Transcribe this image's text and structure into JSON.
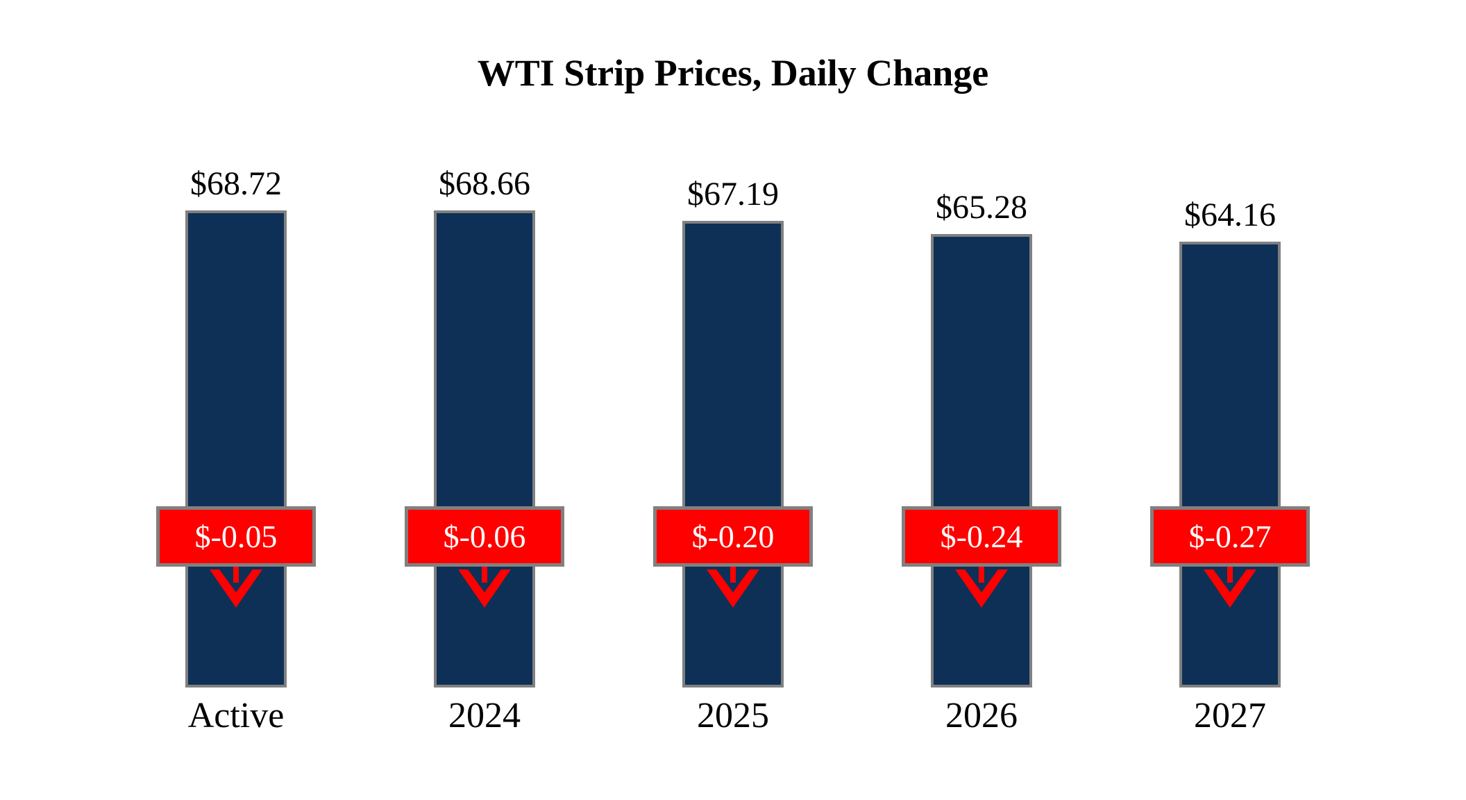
{
  "title": "WTI Strip Prices, Daily Change",
  "colors": {
    "bar_fill": "#0E3056",
    "border_gray": "#808080",
    "change_red": "#FF0000",
    "change_text": "#FFFFFF",
    "label_text": "#000000",
    "background": "#FFFFFF"
  },
  "chart_data": {
    "type": "bar",
    "title": "WTI Strip Prices, Daily Change",
    "categories": [
      "Active",
      "2024",
      "2025",
      "2026",
      "2027"
    ],
    "series": [
      {
        "name": "strip_price_usd",
        "values": [
          68.72,
          68.66,
          67.19,
          65.28,
          64.16
        ],
        "labels": [
          "$68.72",
          "$68.66",
          "$67.19",
          "$65.28",
          "$64.16"
        ]
      },
      {
        "name": "daily_change_usd",
        "values": [
          -0.05,
          -0.06,
          -0.2,
          -0.24,
          -0.27
        ],
        "labels": [
          "$-0.05",
          "$-0.06",
          "$-0.20",
          "$-0.24",
          "$-0.27"
        ]
      }
    ],
    "ylim": [
      0,
      70
    ],
    "baseline": 0,
    "grid": false,
    "axes_visible": false,
    "legend": "none"
  }
}
